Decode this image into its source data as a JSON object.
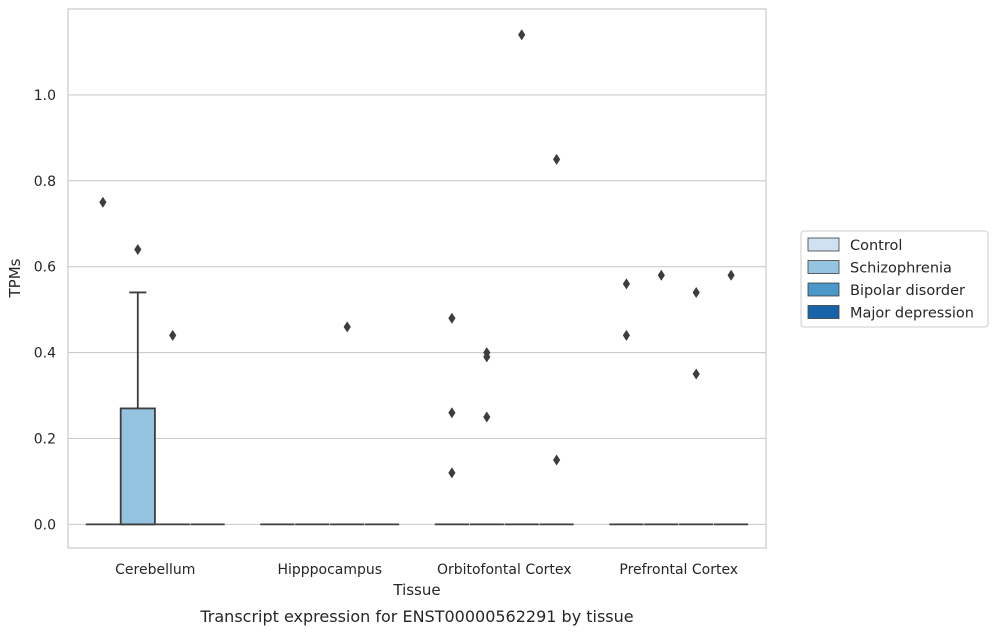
{
  "chart_data": {
    "type": "box",
    "title": "",
    "caption": "Transcript expression for ENST00000562291 by tissue",
    "xlabel": "Tissue",
    "ylabel": "TPMs",
    "categories": [
      "Cerebellum",
      "Hipppocampus",
      "Orbitofontal Cortex",
      "Prefrontal Cortex"
    ],
    "ylim": [
      -0.055,
      1.2
    ],
    "yticks": [
      0.0,
      0.2,
      0.4,
      0.6,
      0.8,
      1.0
    ],
    "ytick_labels": [
      "0.0",
      "0.2",
      "0.4",
      "0.6",
      "0.8",
      "1.0"
    ],
    "grid": "horizontal",
    "legend_position": "right",
    "legend": [
      {
        "name": "Control",
        "color": "#d0e1f2"
      },
      {
        "name": "Schizophrenia",
        "color": "#94c4df"
      },
      {
        "name": "Bipolar disorder",
        "color": "#4a98c9"
      },
      {
        "name": "Major depression",
        "color": "#1764ab"
      }
    ],
    "boxes": [
      {
        "category": "Cerebellum",
        "group": "Control",
        "q1": 0,
        "median": 0,
        "q3": 0,
        "whisker_low": 0,
        "whisker_high": 0,
        "outliers": [
          0.75
        ]
      },
      {
        "category": "Cerebellum",
        "group": "Schizophrenia",
        "q1": 0,
        "median": 0,
        "q3": 0.27,
        "whisker_low": 0,
        "whisker_high": 0.54,
        "outliers": [
          0.64
        ]
      },
      {
        "category": "Cerebellum",
        "group": "Bipolar disorder",
        "q1": 0,
        "median": 0,
        "q3": 0,
        "whisker_low": 0,
        "whisker_high": 0,
        "outliers": [
          0.44
        ]
      },
      {
        "category": "Cerebellum",
        "group": "Major depression",
        "q1": 0,
        "median": 0,
        "q3": 0,
        "whisker_low": 0,
        "whisker_high": 0,
        "outliers": []
      },
      {
        "category": "Hipppocampus",
        "group": "Control",
        "q1": 0,
        "median": 0,
        "q3": 0,
        "whisker_low": 0,
        "whisker_high": 0,
        "outliers": []
      },
      {
        "category": "Hipppocampus",
        "group": "Schizophrenia",
        "q1": 0,
        "median": 0,
        "q3": 0,
        "whisker_low": 0,
        "whisker_high": 0,
        "outliers": []
      },
      {
        "category": "Hipppocampus",
        "group": "Bipolar disorder",
        "q1": 0,
        "median": 0,
        "q3": 0,
        "whisker_low": 0,
        "whisker_high": 0,
        "outliers": [
          0.46
        ]
      },
      {
        "category": "Hipppocampus",
        "group": "Major depression",
        "q1": 0,
        "median": 0,
        "q3": 0,
        "whisker_low": 0,
        "whisker_high": 0,
        "outliers": []
      },
      {
        "category": "Orbitofontal Cortex",
        "group": "Control",
        "q1": 0,
        "median": 0,
        "q3": 0,
        "whisker_low": 0,
        "whisker_high": 0,
        "outliers": [
          0.48,
          0.26,
          0.12
        ]
      },
      {
        "category": "Orbitofontal Cortex",
        "group": "Schizophrenia",
        "q1": 0,
        "median": 0,
        "q3": 0,
        "whisker_low": 0,
        "whisker_high": 0,
        "outliers": [
          0.4,
          0.39,
          0.25
        ]
      },
      {
        "category": "Orbitofontal Cortex",
        "group": "Bipolar disorder",
        "q1": 0,
        "median": 0,
        "q3": 0,
        "whisker_low": 0,
        "whisker_high": 0,
        "outliers": [
          1.14
        ]
      },
      {
        "category": "Orbitofontal Cortex",
        "group": "Major depression",
        "q1": 0,
        "median": 0,
        "q3": 0,
        "whisker_low": 0,
        "whisker_high": 0,
        "outliers": [
          0.85,
          0.15
        ]
      },
      {
        "category": "Prefrontal Cortex",
        "group": "Control",
        "q1": 0,
        "median": 0,
        "q3": 0,
        "whisker_low": 0,
        "whisker_high": 0,
        "outliers": [
          0.56,
          0.44
        ]
      },
      {
        "category": "Prefrontal Cortex",
        "group": "Schizophrenia",
        "q1": 0,
        "median": 0,
        "q3": 0,
        "whisker_low": 0,
        "whisker_high": 0,
        "outliers": [
          0.58
        ]
      },
      {
        "category": "Prefrontal Cortex",
        "group": "Bipolar disorder",
        "q1": 0,
        "median": 0,
        "q3": 0,
        "whisker_low": 0,
        "whisker_high": 0,
        "outliers": [
          0.54,
          0.35
        ]
      },
      {
        "category": "Prefrontal Cortex",
        "group": "Major depression",
        "q1": 0,
        "median": 0,
        "q3": 0,
        "whisker_low": 0,
        "whisker_high": 0,
        "outliers": [
          0.58
        ]
      }
    ]
  }
}
